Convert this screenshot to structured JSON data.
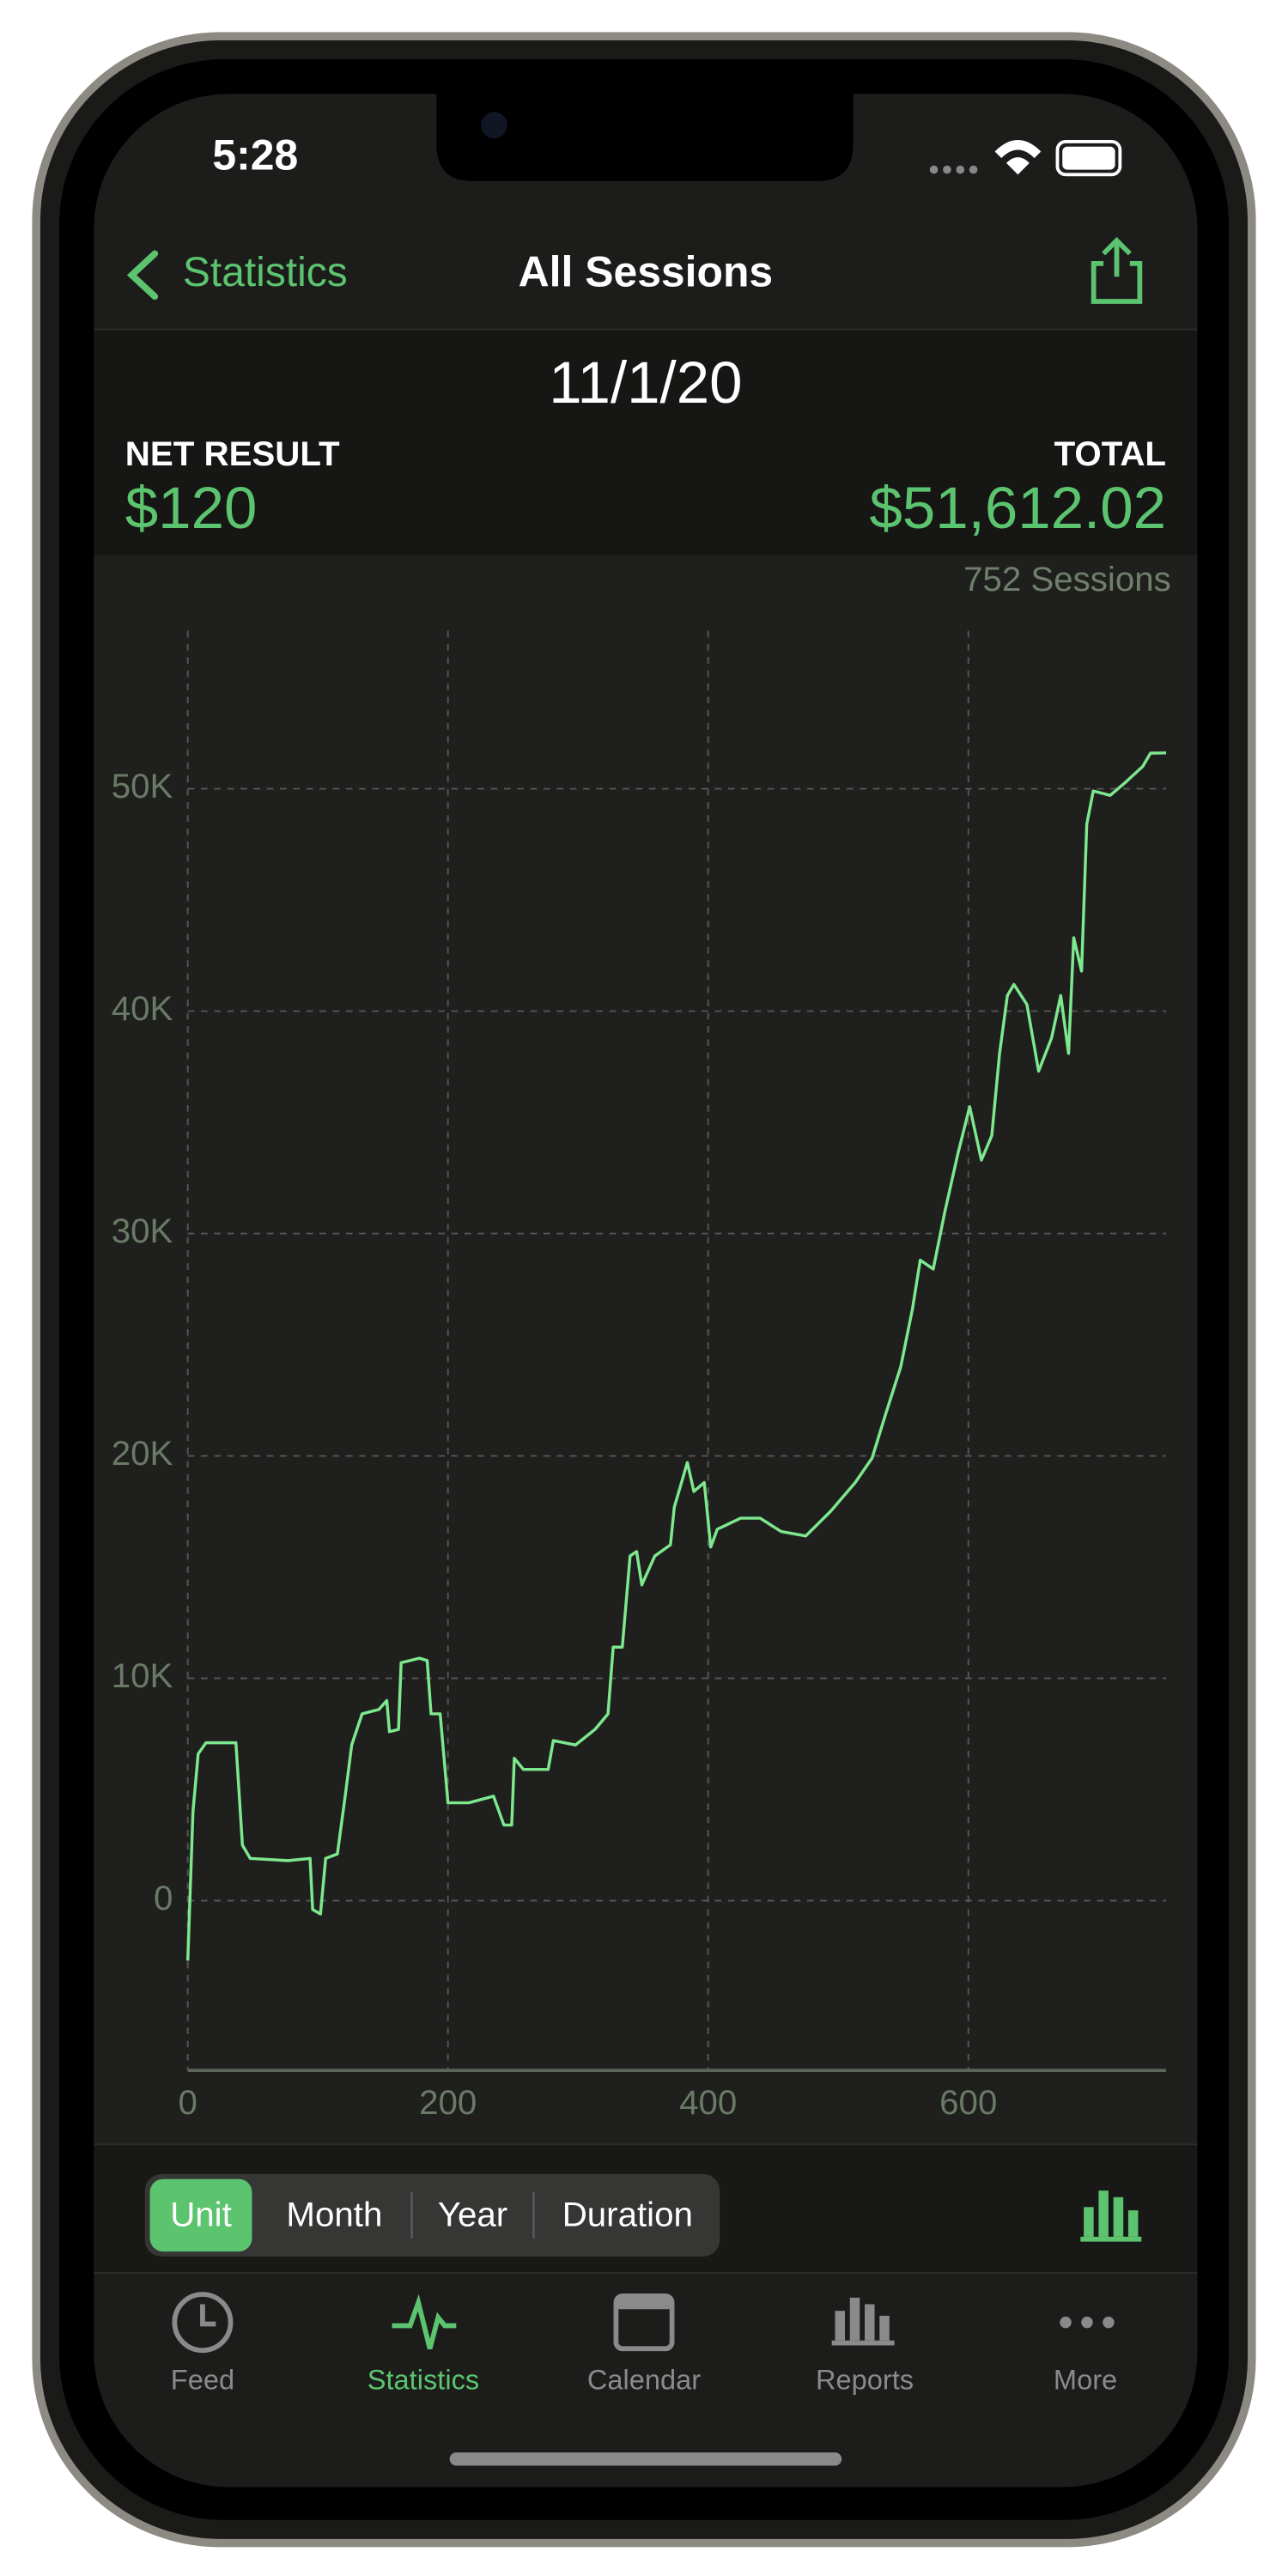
{
  "status_bar": {
    "time": "5:28"
  },
  "nav": {
    "back": "Statistics",
    "title": "All Sessions"
  },
  "header": {
    "date": "11/1/20",
    "net_result_label": "NET RESULT",
    "net_result": "$120",
    "total_label": "TOTAL",
    "total": "$51,612.02",
    "sessions": "752 Sessions"
  },
  "chart_data": {
    "type": "line",
    "color": "#7de88e",
    "grid": true,
    "x": [
      0,
      4,
      8,
      14,
      37,
      42,
      48,
      77,
      94,
      96,
      102,
      106,
      115,
      121,
      126,
      134,
      147,
      153,
      155,
      162,
      164,
      178,
      184,
      187,
      194,
      200,
      216,
      235,
      243,
      249,
      251,
      258,
      277,
      281,
      298,
      313,
      323,
      327,
      334,
      340,
      345,
      349,
      359,
      371,
      374,
      384,
      389,
      397,
      402,
      407,
      425,
      440,
      456,
      475,
      494,
      513,
      526,
      536,
      548,
      557,
      563,
      573,
      582,
      592,
      601,
      610,
      618,
      624,
      630,
      635,
      645,
      654,
      664,
      671,
      677,
      681,
      687,
      691,
      696,
      709,
      721,
      734,
      740,
      752
    ],
    "values": [
      -2700,
      4000,
      6600,
      7100,
      7100,
      2500,
      1900,
      1800,
      1900,
      -400,
      -600,
      1900,
      2100,
      4700,
      7000,
      8400,
      8600,
      9000,
      7600,
      7700,
      10700,
      10900,
      10800,
      8400,
      8400,
      4400,
      4400,
      4700,
      3400,
      3400,
      6400,
      5900,
      5900,
      7200,
      7000,
      7700,
      8400,
      11400,
      11400,
      15500,
      15700,
      14200,
      15500,
      16000,
      17700,
      19700,
      18400,
      18800,
      15900,
      16700,
      17200,
      17200,
      16600,
      16400,
      17500,
      18800,
      19900,
      21800,
      24000,
      26600,
      28800,
      28400,
      31000,
      33600,
      35700,
      33300,
      34400,
      38100,
      40700,
      41200,
      40300,
      37300,
      38800,
      40700,
      38100,
      43300,
      41800,
      48400,
      49900,
      49700,
      50300,
      51000,
      51600,
      51612
    ],
    "xlim": [
      0,
      752
    ],
    "ylim": [
      -7630,
      57100
    ],
    "xticks": [
      0,
      200,
      400,
      600
    ],
    "yticks": [
      0,
      {
        "value": 10000,
        "label": "10K"
      },
      {
        "value": 20000,
        "label": "20K"
      },
      {
        "value": 30000,
        "label": "30K"
      },
      {
        "value": 40000,
        "label": "40K"
      },
      {
        "value": 50000,
        "label": "50K"
      }
    ]
  },
  "segmented": {
    "options": [
      "Unit",
      "Month",
      "Year",
      "Duration"
    ]
  },
  "tabs": [
    "Feed",
    "Statistics",
    "Calendar",
    "Reports",
    "More"
  ]
}
